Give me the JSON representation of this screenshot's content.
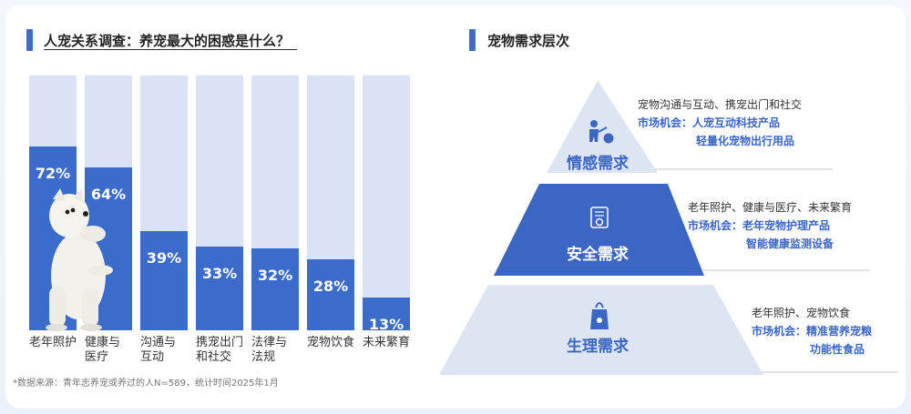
{
  "left_title": "人宠关系调查：养宠最大的困惑是什么？",
  "right_title": "宠物需求层次",
  "source_note": "*数据来源：青年志养宠或养过的人N=589，统计时间2025年1月",
  "chart_data": {
    "type": "bar",
    "title": "人宠关系调查：养宠最大的困惑是什么？",
    "categories": [
      "老年照护",
      "健康与医疗",
      "沟通与互动",
      "携宠出门和社交",
      "法律与法规",
      "宠物饮食",
      "未来繁育"
    ],
    "category_display": [
      "老年照护",
      "健康与\n医疗",
      "沟通与\n互动",
      "携宠出门\n和社交",
      "法律与\n法规",
      "宠物饮食",
      "未来繁育"
    ],
    "values": [
      72,
      64,
      39,
      33,
      32,
      28,
      13
    ],
    "value_labels": [
      "72%",
      "64%",
      "39%",
      "33%",
      "32%",
      "28%",
      "13%"
    ],
    "unit": "%",
    "ylim": [
      0,
      100
    ],
    "grid": false,
    "legend": "none",
    "colors": {
      "fill": "#3b6bcb",
      "track": "#d9e3f5"
    }
  },
  "pyramid": {
    "layers": [
      {
        "label": "情感需求",
        "needs": "宠物沟通与互动、携宠出门和社交",
        "opp_label": "市场机会：",
        "opportunities": [
          "人宠互动科技产品",
          "轻量化宠物出行用品"
        ],
        "icon": "person-ball-icon"
      },
      {
        "label": "安全需求",
        "needs": "老年照护、健康与医疗、未来繁育",
        "opp_label": "市场机会：",
        "opportunities": [
          "老年宠物护理产品",
          "智能健康监测设备"
        ],
        "icon": "medical-kit-icon"
      },
      {
        "label": "生理需求",
        "needs": "老年照护、宠物饮食",
        "opp_label": "市场机会：",
        "opportunities": [
          "精准营养宠粮",
          "功能性食品"
        ],
        "icon": "pet-food-bag-icon"
      }
    ],
    "colors": {
      "top": "#dde5f3",
      "middle": "#3b66c4",
      "bottom": "#dde5f3",
      "accent": "#3b66c4"
    }
  }
}
